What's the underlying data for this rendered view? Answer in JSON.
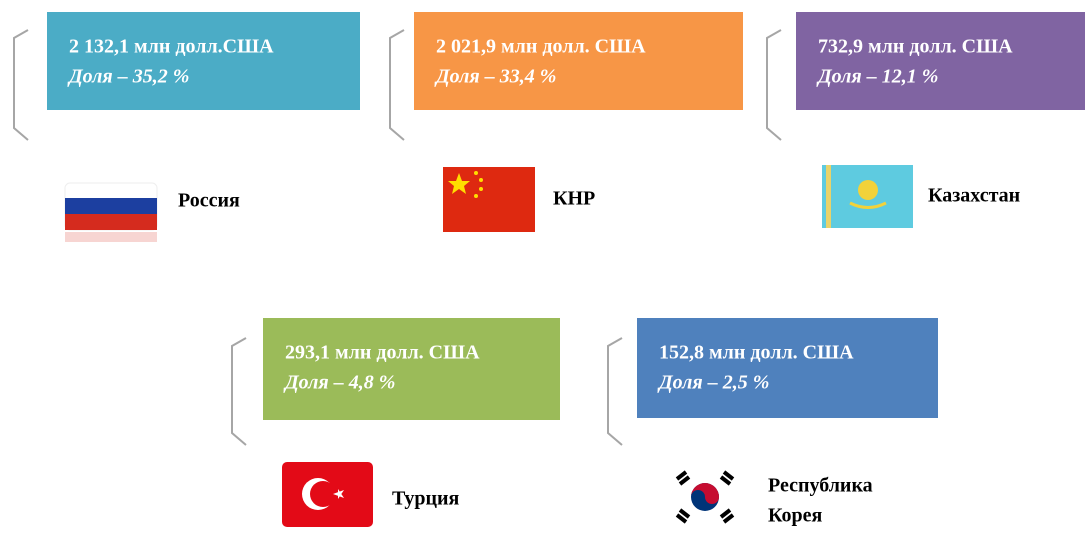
{
  "items": [
    {
      "amount": "2 132,1 млн долл.США",
      "share": "Доля – 35,2 %",
      "country": [
        "Россия"
      ]
    },
    {
      "amount": "2 021,9 млн долл. США",
      "share": "Доля – 33,4 %",
      "country": [
        "КНР"
      ]
    },
    {
      "amount": "732,9 млн долл. США",
      "share": "Доля – 12,1 %",
      "country": [
        "Казахстан"
      ]
    },
    {
      "amount": "293,1 млн долл. США",
      "share": "Доля – 4,8 %",
      "country": [
        "Турция"
      ]
    },
    {
      "amount": "152,8 млн долл. США",
      "share": "Доля – 2,5 %",
      "country": [
        "Республика",
        "Корея"
      ]
    }
  ]
}
